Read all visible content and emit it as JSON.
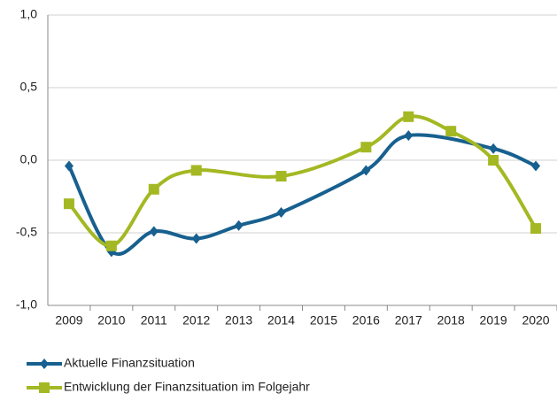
{
  "chart_data": {
    "type": "line",
    "xlim": [
      2008.5,
      2020.5
    ],
    "xticks": [
      2009,
      2010,
      2011,
      2012,
      2013,
      2014,
      2015,
      2016,
      2017,
      2018,
      2019,
      2020
    ],
    "ylim": [
      -1.0,
      1.0
    ],
    "yticks": [
      {
        "value": 1.0,
        "label": "1,0"
      },
      {
        "value": 0.5,
        "label": "0,5"
      },
      {
        "value": 0.0,
        "label": "0,0"
      },
      {
        "value": -0.5,
        "label": "-0,5"
      },
      {
        "value": -1.0,
        "label": "-1,0"
      }
    ],
    "grid": true,
    "smooth": true,
    "legend": "bottom",
    "series": [
      {
        "name": "Aktuelle Finanzsituation",
        "color": "#17608f",
        "marker": "diamond",
        "x": [
          2009,
          2010,
          2011,
          2012,
          2013,
          2014,
          2016,
          2017,
          2019,
          2020
        ],
        "values": [
          -0.04,
          -0.63,
          -0.49,
          -0.54,
          -0.45,
          -0.36,
          -0.07,
          0.17,
          0.08,
          -0.04
        ]
      },
      {
        "name": "Entwicklung der Finanzsituation im Folgejahr",
        "color": "#a4b823",
        "marker": "square",
        "x": [
          2009,
          2010,
          2011,
          2012,
          2014,
          2016,
          2017,
          2018,
          2019,
          2020
        ],
        "values": [
          -0.3,
          -0.59,
          -0.2,
          -0.07,
          -0.11,
          0.09,
          0.3,
          0.2,
          0.0,
          -0.47
        ]
      }
    ]
  }
}
